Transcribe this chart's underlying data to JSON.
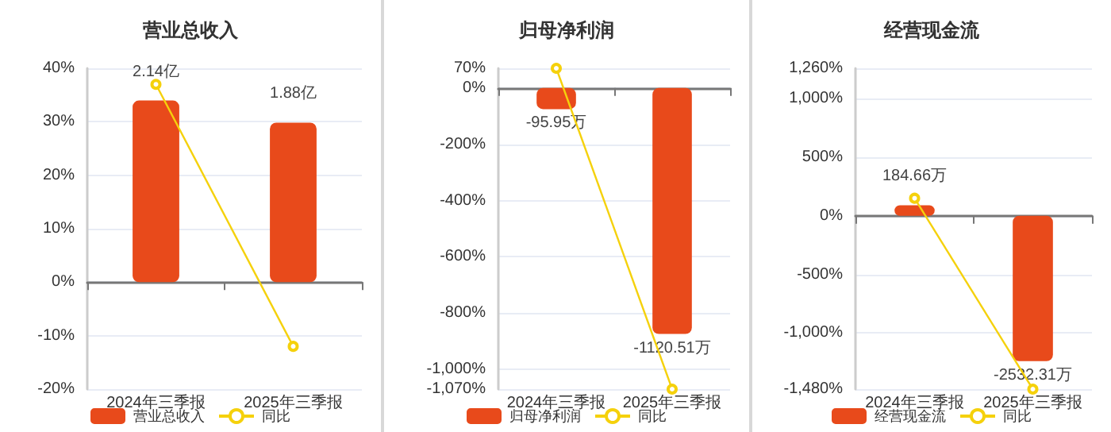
{
  "chart_data": [
    {
      "type": "bar",
      "title": "营业总收入",
      "categories": [
        "2024年三季报",
        "2025年三季报"
      ],
      "series": [
        {
          "name": "营业总收入",
          "color": "#e84a1b",
          "values": [
            2.14,
            1.88
          ],
          "value_labels": [
            "2.14亿",
            "1.88亿"
          ],
          "axis": "y2"
        },
        {
          "type": "line",
          "name": "同比",
          "color": "#f5d10c",
          "values": [
            37,
            -12
          ],
          "marker": "circle"
        }
      ],
      "ylim": [
        -20,
        40
      ],
      "yticks": [
        {
          "value": -20,
          "label": "-20%"
        },
        {
          "value": -10,
          "label": "-10%"
        },
        {
          "value": 0,
          "label": "0%"
        },
        {
          "value": 10,
          "label": "10%"
        },
        {
          "value": 20,
          "label": "20%"
        },
        {
          "value": 30,
          "label": "30%"
        },
        {
          "value": 40,
          "label": "40%"
        }
      ],
      "y2lim": [
        -1.26,
        2.52
      ],
      "grid": "y",
      "legend": "bottom"
    },
    {
      "type": "bar",
      "title": "归母净利润",
      "categories": [
        "2024年三季报",
        "2025年三季报"
      ],
      "series": [
        {
          "name": "归母净利润",
          "color": "#e84a1b",
          "values": [
            -95.95,
            -1120.51
          ],
          "value_labels": [
            "-95.95万",
            "-1120.51万"
          ],
          "axis": "y2"
        },
        {
          "type": "line",
          "name": "同比",
          "color": "#f5d10c",
          "values": [
            70,
            -1070
          ],
          "marker": "circle"
        }
      ],
      "ylim": [
        -1070,
        70
      ],
      "yticks": [
        {
          "value": -1070,
          "label": "-1,070%"
        },
        {
          "value": -1000,
          "label": "-1,000%"
        },
        {
          "value": -800,
          "label": "-800%"
        },
        {
          "value": -600,
          "label": "-600%"
        },
        {
          "value": -400,
          "label": "-400%"
        },
        {
          "value": -200,
          "label": "-200%"
        },
        {
          "value": 0,
          "label": "0%"
        },
        {
          "value": 70,
          "label": "70%"
        }
      ],
      "y2lim": [
        -1372,
        90
      ],
      "grid": "y",
      "legend": "bottom"
    },
    {
      "type": "bar",
      "title": "经营现金流",
      "categories": [
        "2024年三季报",
        "2025年三季报"
      ],
      "series": [
        {
          "name": "经营现金流",
          "color": "#e84a1b",
          "values": [
            184.66,
            -2532.31
          ],
          "value_labels": [
            "184.66万",
            "-2532.31万"
          ],
          "axis": "y2"
        },
        {
          "type": "line",
          "name": "同比",
          "color": "#f5d10c",
          "values": [
            150,
            -1480
          ],
          "marker": "circle"
        }
      ],
      "ylim": [
        -1480,
        1260
      ],
      "yticks": [
        {
          "value": -1480,
          "label": "-1,480%"
        },
        {
          "value": -1000,
          "label": "-1,000%"
        },
        {
          "value": -500,
          "label": "-500%"
        },
        {
          "value": 0,
          "label": "0%"
        },
        {
          "value": 500,
          "label": "500%"
        },
        {
          "value": 1000,
          "label": "1,000%"
        },
        {
          "value": 1260,
          "label": "1,260%"
        }
      ],
      "y2lim": [
        -3020,
        2571
      ],
      "grid": "y",
      "legend": "bottom"
    }
  ]
}
